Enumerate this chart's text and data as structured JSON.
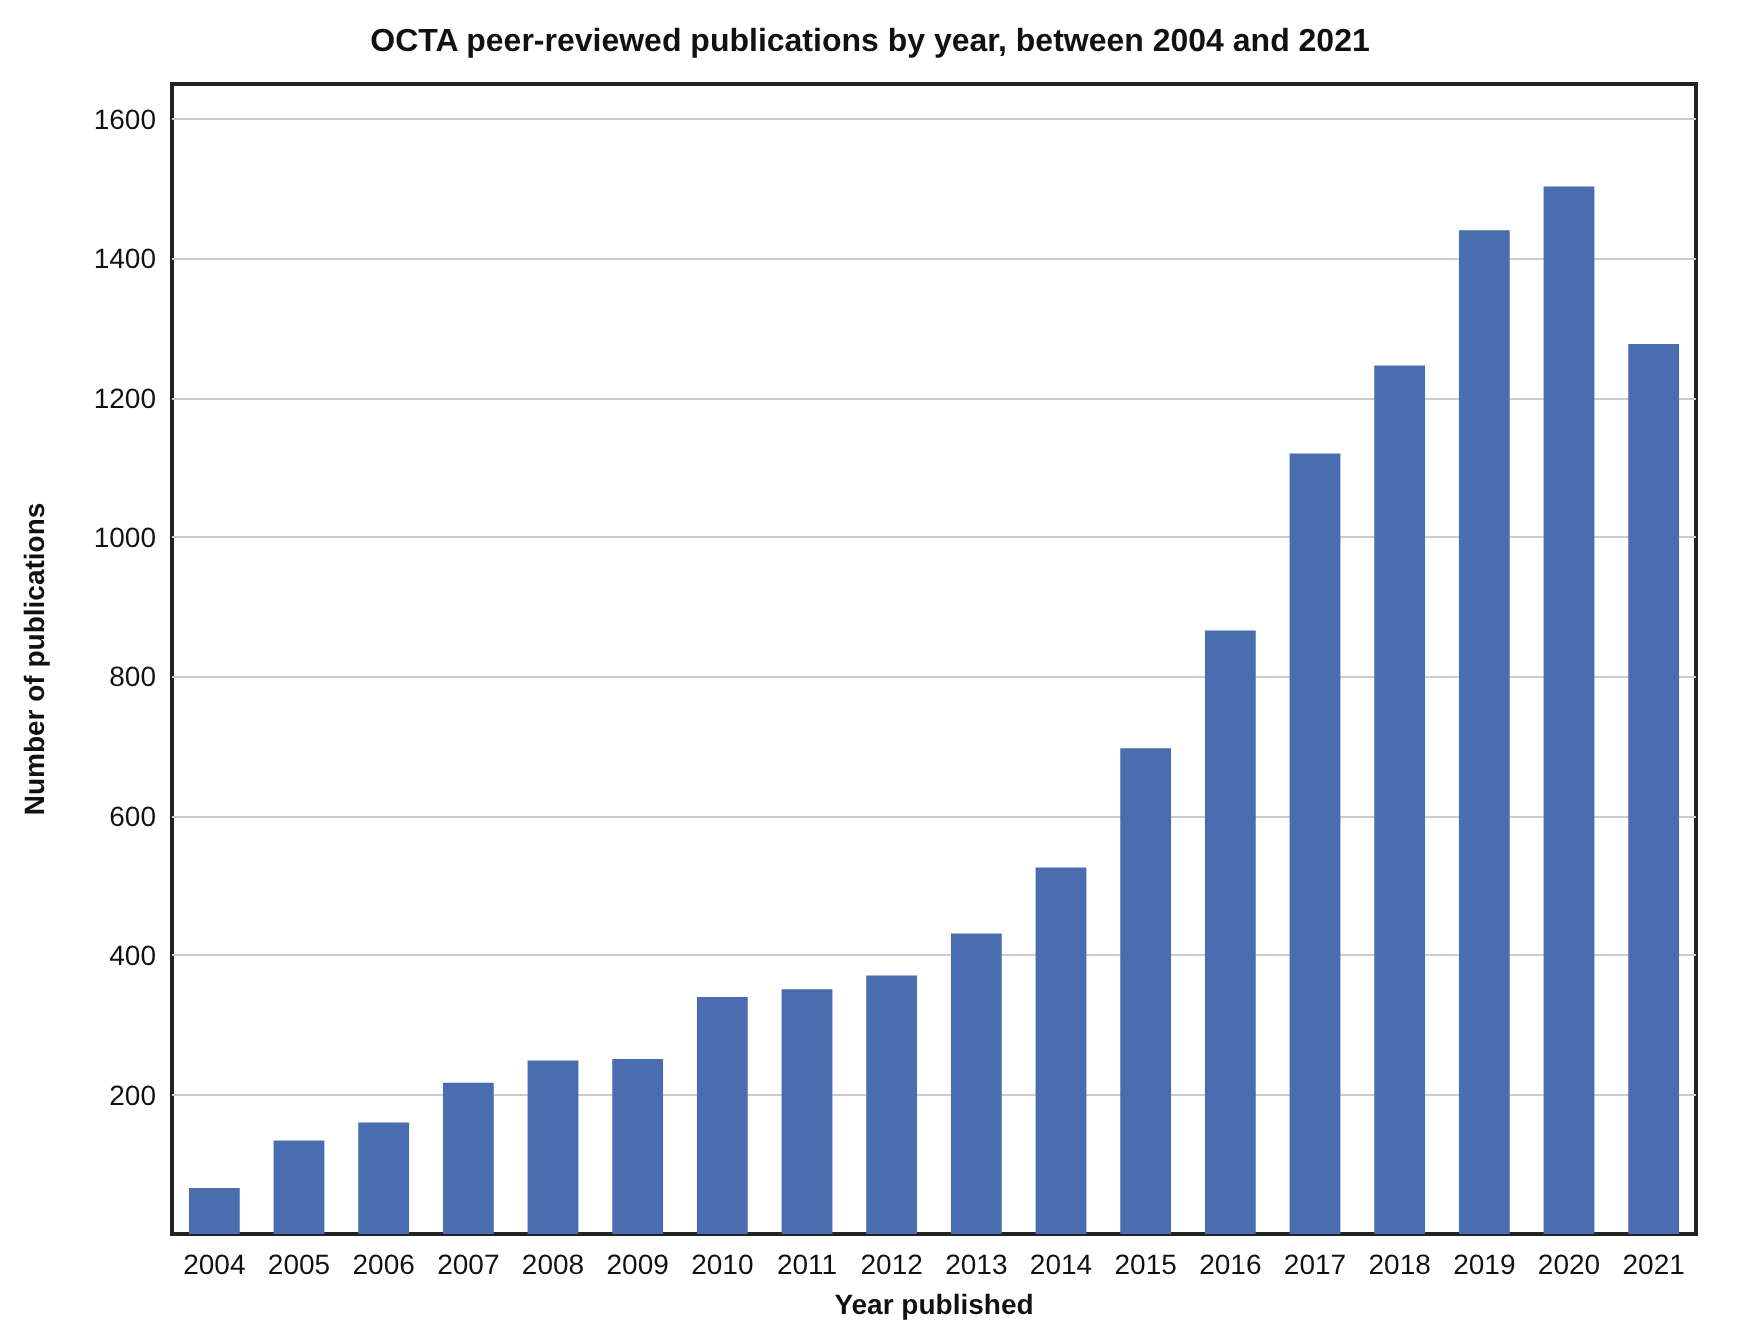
{
  "chart_data": {
    "type": "bar",
    "title": "OCTA peer-reviewed publications by year, between 2004 and 2021",
    "xlabel": "Year published",
    "ylabel": "Number of publications",
    "categories": [
      "2004",
      "2005",
      "2006",
      "2007",
      "2008",
      "2009",
      "2010",
      "2011",
      "2012",
      "2013",
      "2014",
      "2015",
      "2016",
      "2017",
      "2018",
      "2019",
      "2020",
      "2021"
    ],
    "values": [
      66,
      134,
      160,
      217,
      249,
      251,
      340,
      351,
      371,
      431,
      526,
      697,
      866,
      1120,
      1246,
      1440,
      1503,
      1277
    ],
    "color": "#4a6db0",
    "ylim": [
      0,
      1650
    ],
    "yticks": [
      200,
      400,
      600,
      800,
      1000,
      1200,
      1400,
      1600
    ],
    "grid": "y"
  }
}
